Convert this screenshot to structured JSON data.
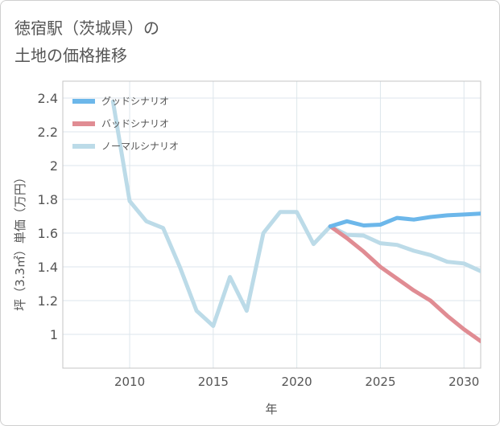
{
  "title": {
    "line1": "徳宿駅（茨城県）の",
    "line2": "土地の価格推移"
  },
  "chart_data": {
    "type": "line",
    "xlabel": "年",
    "ylabel": "坪（3.3㎡）単価（万円）",
    "xlim": [
      2006,
      2031
    ],
    "ylim": [
      0.8,
      2.5
    ],
    "xticks": [
      2010,
      2015,
      2020,
      2025,
      2030
    ],
    "yticks": [
      1,
      1.2,
      1.4,
      1.6,
      1.8,
      2,
      2.2,
      2.4
    ],
    "ytick_labels": [
      "1",
      "1.2",
      "1.4",
      "1.6",
      "1.8",
      "2",
      "2.2",
      "2.4"
    ],
    "legend_position": "top-left",
    "series": [
      {
        "name": "グッドシナリオ",
        "color": "#6cb7ea",
        "x": [
          2022,
          2023,
          2024,
          2025,
          2026,
          2027,
          2028,
          2029,
          2030,
          2031
        ],
        "values": [
          1.64,
          1.67,
          1.645,
          1.65,
          1.69,
          1.68,
          1.695,
          1.705,
          1.71,
          1.715
        ]
      },
      {
        "name": "バッドシナリオ",
        "color": "#e08c93",
        "x": [
          2022,
          2023,
          2024,
          2025,
          2026,
          2027,
          2028,
          2029,
          2030,
          2031
        ],
        "values": [
          1.64,
          1.57,
          1.49,
          1.4,
          1.33,
          1.26,
          1.2,
          1.11,
          1.03,
          0.96
        ]
      },
      {
        "name": "ノーマルシナリオ",
        "color": "#bcdbe8",
        "x": [
          2009,
          2010,
          2011,
          2012,
          2013,
          2014,
          2015,
          2016,
          2017,
          2018,
          2019,
          2020,
          2021,
          2022,
          2023,
          2024,
          2025,
          2026,
          2027,
          2028,
          2029,
          2030,
          2031
        ],
        "values": [
          2.38,
          1.79,
          1.67,
          1.63,
          1.4,
          1.14,
          1.05,
          1.34,
          1.14,
          1.6,
          1.725,
          1.725,
          1.535,
          1.64,
          1.59,
          1.585,
          1.54,
          1.53,
          1.495,
          1.47,
          1.43,
          1.42,
          1.375
        ]
      }
    ]
  }
}
